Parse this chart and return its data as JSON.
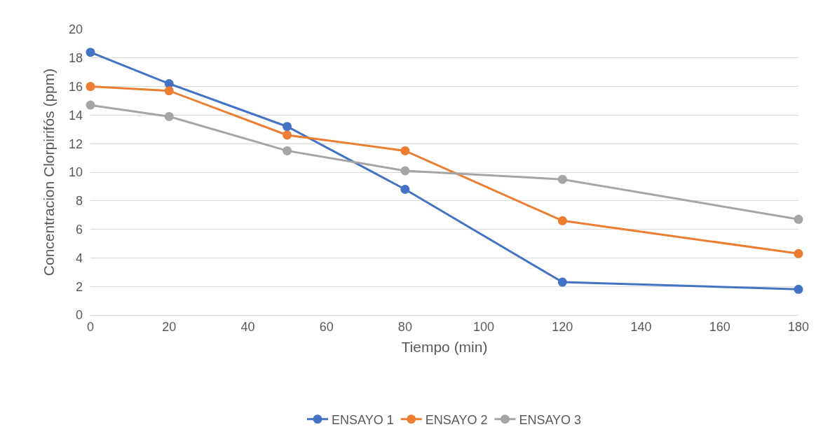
{
  "chart_data": {
    "type": "line",
    "xlabel": "Tiempo (min)",
    "ylabel": "Concentracion Clorpirifós (ppm)",
    "x": [
      0,
      20,
      50,
      80,
      120,
      180
    ],
    "series": [
      {
        "name": "ENSAYO 1",
        "color": "#4472c4",
        "values": [
          18.4,
          16.2,
          13.2,
          8.8,
          2.3,
          1.8
        ]
      },
      {
        "name": "ENSAYO 2",
        "color": "#ed7d31",
        "values": [
          16.0,
          15.7,
          12.6,
          11.5,
          6.6,
          4.3
        ]
      },
      {
        "name": "ENSAYO 3",
        "color": "#a5a5a5",
        "values": [
          14.7,
          13.9,
          11.5,
          10.1,
          9.5,
          6.7
        ]
      }
    ],
    "xlim": [
      0,
      180
    ],
    "xticks": [
      0,
      20,
      40,
      60,
      80,
      100,
      120,
      140,
      160,
      180
    ],
    "ylim": [
      0,
      20
    ],
    "yticks": [
      0,
      2,
      4,
      6,
      8,
      10,
      12,
      14,
      16,
      18,
      20
    ],
    "grid": "y",
    "legend": "bottom",
    "marker": "circle",
    "line_style": "solid"
  }
}
